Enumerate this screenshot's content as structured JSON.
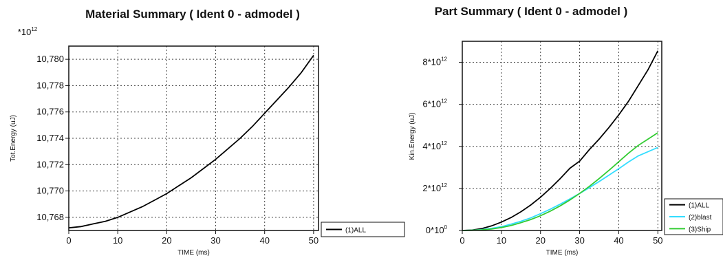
{
  "chart_data": [
    {
      "type": "line",
      "title": "Material Summary ( Ident 0 - admodel )",
      "multiplier_label": "*10",
      "multiplier_exp": "12",
      "xlabel": "TIME (ms)",
      "ylabel": "Tot.Energy (uJ)",
      "xlim": [
        0,
        51
      ],
      "ylim": [
        10.767,
        10.781
      ],
      "x_ticks": [
        0,
        10,
        20,
        30,
        40,
        50
      ],
      "y_ticks": [
        10.768,
        10.77,
        10.772,
        10.774,
        10.776,
        10.778,
        10.78
      ],
      "y_tick_labels": [
        "10,768",
        "10,770",
        "10,772",
        "10,774",
        "10,776",
        "10,778",
        "10,780"
      ],
      "grid": true,
      "legend_position": "bottom-right-outside",
      "series": [
        {
          "name": "(1)ALL",
          "color": "#000000",
          "x": [
            0,
            2.5,
            5,
            7.5,
            10,
            12.5,
            15,
            17.5,
            20,
            22.5,
            25,
            27.5,
            30,
            32.5,
            35,
            37.5,
            40,
            42.5,
            45,
            47.5,
            50
          ],
          "values": [
            10.7672,
            10.7673,
            10.7675,
            10.7677,
            10.768,
            10.7684,
            10.7688,
            10.7693,
            10.7698,
            10.7704,
            10.771,
            10.7717,
            10.7724,
            10.7732,
            10.774,
            10.7749,
            10.7759,
            10.7769,
            10.7779,
            10.779,
            10.7803
          ]
        }
      ]
    },
    {
      "type": "line",
      "title": "Part Summary ( Ident 0 - admodel )",
      "xlabel": "TIME (ms)",
      "ylabel": "Kin.Energy (uJ)",
      "xlim": [
        0,
        51
      ],
      "ylim": [
        0,
        9
      ],
      "x_ticks": [
        0,
        10,
        20,
        30,
        40,
        50
      ],
      "y_ticks": [
        0,
        2,
        4,
        6,
        8
      ],
      "y_tick_base": [
        "0*10",
        "2*10",
        "4*10",
        "6*10",
        "8*10"
      ],
      "y_tick_exp": [
        "0",
        "12",
        "12",
        "12",
        "12"
      ],
      "grid": true,
      "legend_position": "bottom-right-outside",
      "series": [
        {
          "name": "(1)ALL",
          "color": "#000000",
          "x": [
            0,
            2.5,
            5,
            7.5,
            10,
            12.5,
            15,
            17.5,
            20,
            22.5,
            25,
            27.5,
            30,
            32.5,
            35,
            37.5,
            40,
            42.5,
            45,
            47.5,
            50
          ],
          "values": [
            0,
            0.02,
            0.09,
            0.22,
            0.4,
            0.62,
            0.89,
            1.21,
            1.58,
            2.0,
            2.46,
            2.96,
            3.3,
            3.85,
            4.35,
            4.9,
            5.5,
            6.15,
            6.9,
            7.65,
            8.55
          ]
        },
        {
          "name": "(2)blast",
          "color": "#33ddff",
          "x": [
            0,
            2.5,
            5,
            7.5,
            10,
            12.5,
            15,
            17.5,
            20,
            22.5,
            25,
            27.5,
            30,
            32.5,
            35,
            37.5,
            40,
            42.5,
            45,
            47.5,
            50
          ],
          "values": [
            0,
            0.01,
            0.04,
            0.1,
            0.18,
            0.3,
            0.44,
            0.6,
            0.8,
            1.01,
            1.25,
            1.5,
            1.76,
            2.04,
            2.33,
            2.63,
            2.94,
            3.26,
            3.55,
            3.75,
            3.95
          ]
        },
        {
          "name": "(3)Ship",
          "color": "#33cc33",
          "x": [
            0,
            2.5,
            5,
            7.5,
            10,
            12.5,
            15,
            17.5,
            20,
            22.5,
            25,
            27.5,
            30,
            32.5,
            35,
            37.5,
            40,
            42.5,
            45,
            47.5,
            50
          ],
          "values": [
            0,
            0.01,
            0.03,
            0.07,
            0.14,
            0.24,
            0.37,
            0.52,
            0.7,
            0.92,
            1.17,
            1.45,
            1.76,
            2.1,
            2.47,
            2.86,
            3.27,
            3.68,
            4.05,
            4.35,
            4.65
          ]
        }
      ]
    }
  ]
}
